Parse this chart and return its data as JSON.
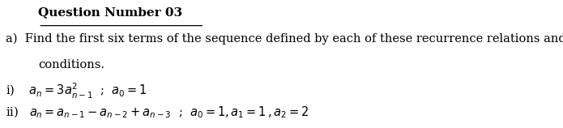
{
  "title": "Question Number 03",
  "line_a": "a)  Find the first six terms of the sequence defined by each of these recurrence relations and initial",
  "line_a2": "conditions.",
  "bg_color": "#ffffff",
  "text_color": "#000000",
  "font_size": 10.5,
  "title_font_size": 11.0
}
